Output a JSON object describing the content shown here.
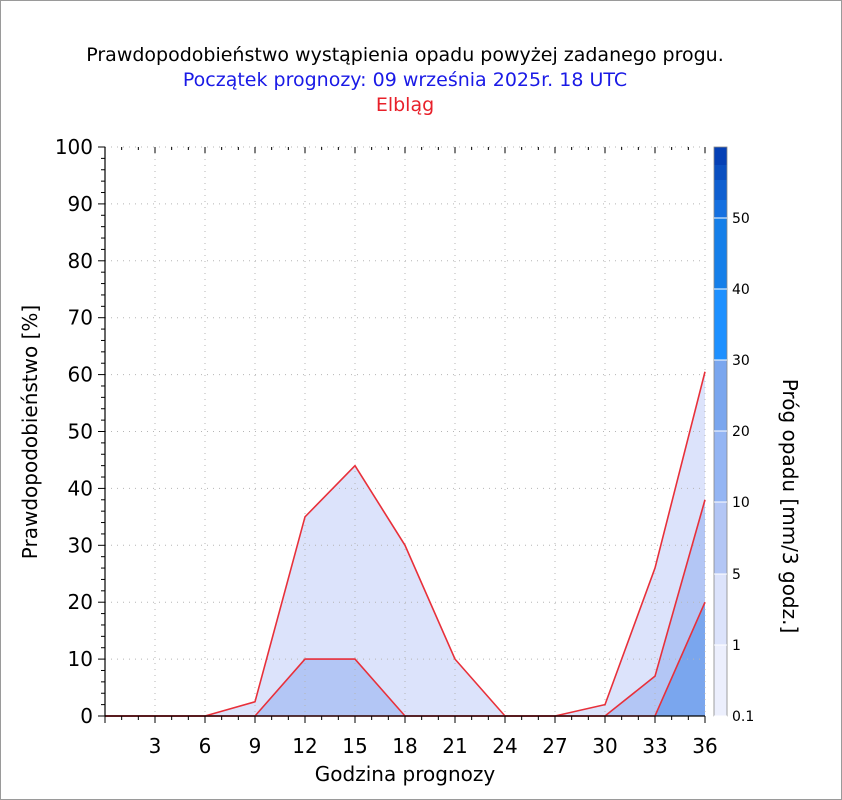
{
  "chart_data": {
    "type": "area",
    "title": "Prawdopodobieństwo wystąpienia opadu powyżej zadanego progu.",
    "subtitle": "Początek prognozy: 09 września 2025r. 18 UTC",
    "location": "Elbląg",
    "xlabel": "Godzina prognozy",
    "ylabel": "Prawdopodobieństwo [%]",
    "xlim": [
      0,
      36
    ],
    "ylim": [
      0,
      100
    ],
    "x_ticks": [
      3,
      6,
      9,
      12,
      15,
      18,
      21,
      24,
      27,
      30,
      33,
      36
    ],
    "y_ticks": [
      0,
      10,
      20,
      30,
      40,
      50,
      60,
      70,
      80,
      90,
      100
    ],
    "grid": true,
    "x": [
      0,
      3,
      6,
      9,
      12,
      15,
      18,
      21,
      24,
      27,
      30,
      33,
      36
    ],
    "series": [
      {
        "name": "0.1",
        "color": "#dce3fb",
        "values": [
          0,
          0,
          0,
          2.5,
          35,
          44,
          30,
          10,
          0,
          0,
          2,
          26,
          60.5
        ]
      },
      {
        "name": "1",
        "color": "#b3c6f5",
        "values": [
          0,
          0,
          0,
          0,
          10,
          10,
          0,
          0,
          0,
          0,
          0,
          7,
          38
        ]
      },
      {
        "name": "5",
        "color": "#7aa6ee",
        "values": [
          0,
          0,
          0,
          0,
          0,
          0,
          0,
          0,
          0,
          0,
          0,
          0,
          20
        ]
      }
    ],
    "colorbar": {
      "title": "Próg opadu [mm/3 godz.]",
      "labels": [
        "0.1",
        "1",
        "5",
        "10",
        "20",
        "30",
        "40",
        "50"
      ],
      "colors": [
        "#eceffd",
        "#dce3fb",
        "#b3c6f5",
        "#94b5f3",
        "#7aa6ee",
        "#1e90ff",
        "#157fe9",
        "#1570e0",
        "#0f5fd0",
        "#0a4fc0",
        "#0540b5"
      ]
    }
  }
}
